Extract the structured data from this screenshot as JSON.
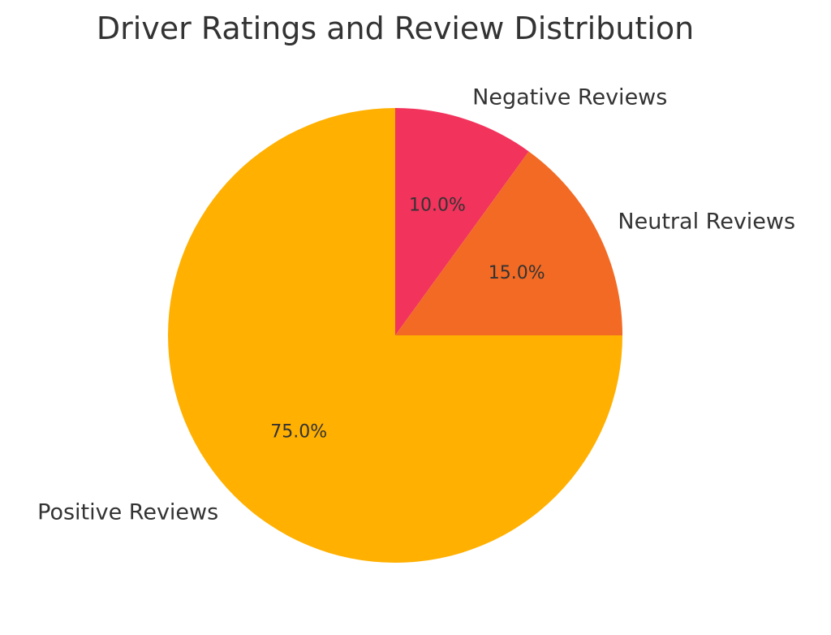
{
  "chart_data": {
    "type": "pie",
    "title": "Driver Ratings and Review Distribution",
    "slices": [
      {
        "label": "Negative Reviews",
        "value": 10.0,
        "pct_text": "10.0%",
        "color": "#F2335C"
      },
      {
        "label": "Neutral Reviews",
        "value": 15.0,
        "pct_text": "15.0%",
        "color": "#F26A24"
      },
      {
        "label": "Positive Reviews",
        "value": 75.0,
        "pct_text": "75.0%",
        "color": "#FFB000"
      }
    ],
    "start_angle": "top",
    "direction": "clockwise",
    "legend": "none"
  }
}
